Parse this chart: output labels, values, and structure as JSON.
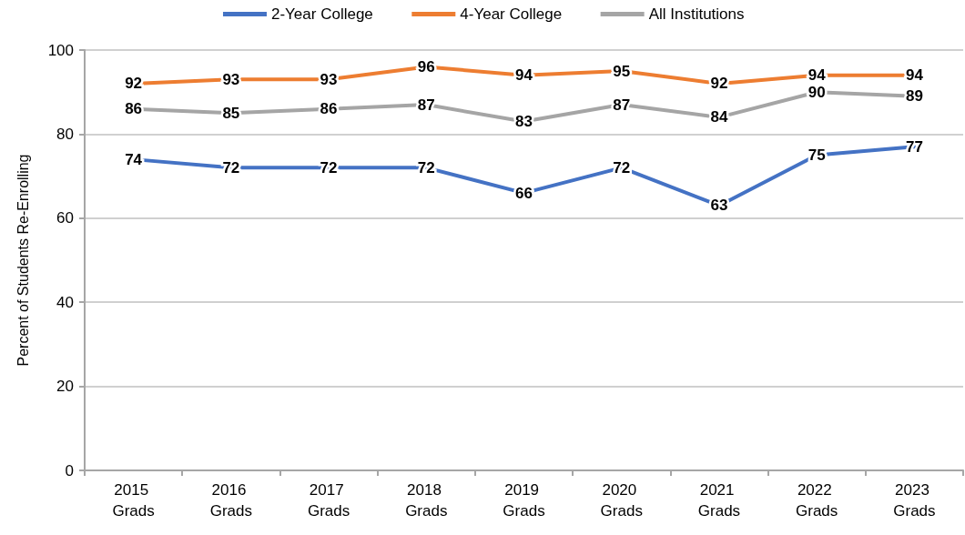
{
  "chart_data": {
    "type": "line",
    "categories": [
      "2015 Grads",
      "2016 Grads",
      "2017 Grads",
      "2018 Grads",
      "2019 Grads",
      "2020 Grads",
      "2021 Grads",
      "2022 Grads",
      "2023 Grads"
    ],
    "series": [
      {
        "name": "2-Year College",
        "color": "#4472c4",
        "values": [
          74,
          72,
          72,
          72,
          66,
          72,
          63,
          75,
          77
        ]
      },
      {
        "name": "4-Year College",
        "color": "#ed7d31",
        "values": [
          92,
          93,
          93,
          96,
          94,
          95,
          92,
          94,
          94
        ]
      },
      {
        "name": "All Institutions",
        "color": "#a5a5a5",
        "values": [
          86,
          85,
          86,
          87,
          83,
          87,
          84,
          90,
          89
        ]
      }
    ],
    "ylabel": "Percent of Students Re-Enrolling",
    "ylim": [
      0,
      100
    ],
    "yticks": [
      0,
      20,
      40,
      60,
      80,
      100
    ],
    "grid": "y",
    "legend": "top",
    "marker": "none",
    "line_style": "solid",
    "data_labels": true
  }
}
